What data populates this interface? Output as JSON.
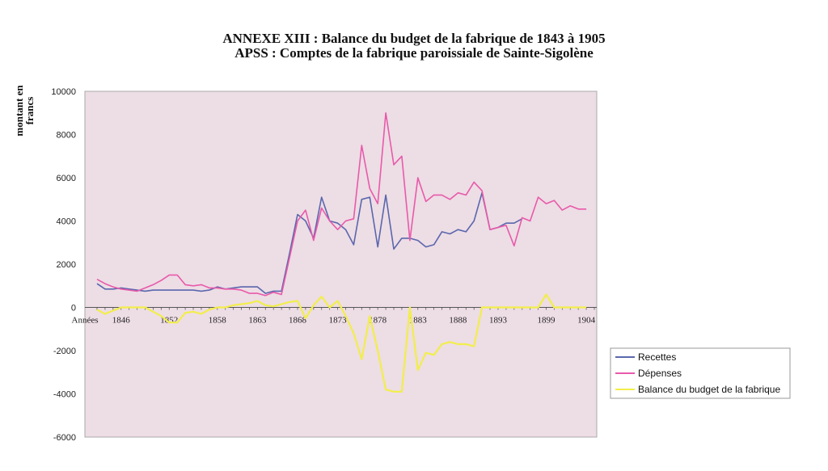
{
  "chart_data": {
    "type": "line",
    "title": "ANNEXE XIII : Balance du budget de la fabrique de 1843 à 1905",
    "subtitle": "APSS : Comptes de la fabrique paroissiale de Sainte-Sigolène",
    "ylabel_line1": "montant en",
    "ylabel_line2": "francs",
    "xlabel": "Années",
    "ylim": [
      -6000,
      10000
    ],
    "xlim": [
      1843,
      1905
    ],
    "yticks": [
      10000,
      8000,
      6000,
      4000,
      2000,
      0,
      -2000,
      -4000,
      -6000
    ],
    "xticks": [
      1846,
      1852,
      1858,
      1863,
      1868,
      1873,
      1878,
      1883,
      1888,
      1893,
      1899,
      1904
    ],
    "legend_position": "right",
    "colors": {
      "plot_background": "#eddde5",
      "recettes": "#5a67ad",
      "depenses": "#e85aaa",
      "balance": "#f2ee4a"
    },
    "series": [
      {
        "name": "Recettes",
        "color": "#5a67ad",
        "x": [
          1843,
          1844,
          1845,
          1846,
          1847,
          1848,
          1849,
          1850,
          1851,
          1852,
          1853,
          1854,
          1855,
          1856,
          1857,
          1858,
          1859,
          1860,
          1861,
          1862,
          1863,
          1864,
          1865,
          1866,
          1867,
          1868,
          1869,
          1870,
          1871,
          1872,
          1873,
          1874,
          1875,
          1876,
          1877,
          1878,
          1879,
          1880,
          1881,
          1882,
          1883,
          1884,
          1885,
          1886,
          1887,
          1888,
          1889,
          1890,
          1891,
          1892,
          1893,
          1894,
          1895,
          1896,
          1897,
          1898,
          1899,
          1900,
          1901,
          1902,
          1903,
          1904
        ],
        "values": [
          1100,
          850,
          850,
          900,
          850,
          800,
          750,
          800,
          800,
          800,
          800,
          800,
          800,
          750,
          800,
          950,
          850,
          900,
          950,
          950,
          950,
          650,
          750,
          750,
          2500,
          4300,
          4000,
          3200,
          5100,
          4000,
          3900,
          3600,
          2900,
          5000,
          5100,
          2800,
          5200,
          2700,
          3200,
          3200,
          3100,
          2800,
          2900,
          3500,
          3400,
          3600,
          3500,
          4000,
          5300,
          3600,
          3700,
          3900,
          3900,
          4100,
          null,
          null,
          null,
          null,
          null,
          null,
          null,
          null
        ]
      },
      {
        "name": "Dépenses",
        "color": "#e85aaa",
        "x": [
          1843,
          1844,
          1845,
          1846,
          1847,
          1848,
          1849,
          1850,
          1851,
          1852,
          1853,
          1854,
          1855,
          1856,
          1857,
          1858,
          1859,
          1860,
          1861,
          1862,
          1863,
          1864,
          1865,
          1866,
          1867,
          1868,
          1869,
          1870,
          1871,
          1872,
          1873,
          1874,
          1875,
          1876,
          1877,
          1878,
          1879,
          1880,
          1881,
          1882,
          1883,
          1884,
          1885,
          1886,
          1887,
          1888,
          1889,
          1890,
          1891,
          1892,
          1893,
          1894,
          1895,
          1896,
          1897,
          1898,
          1899,
          1900,
          1901,
          1902,
          1903,
          1904
        ],
        "values": [
          1300,
          1100,
          950,
          850,
          800,
          750,
          900,
          1050,
          1250,
          1500,
          1500,
          1050,
          1000,
          1050,
          900,
          900,
          850,
          850,
          800,
          650,
          650,
          550,
          700,
          600,
          2300,
          4000,
          4500,
          3100,
          4600,
          4000,
          3600,
          4000,
          4100,
          7500,
          5500,
          4800,
          9000,
          6600,
          7000,
          3100,
          6000,
          4900,
          5200,
          5200,
          5000,
          5300,
          5200,
          5800,
          5400,
          3600,
          3700,
          3800,
          2850,
          4150,
          4000,
          5100,
          4800,
          4950,
          4500,
          4700,
          4550,
          4550
        ]
      },
      {
        "name": "Balance du budget de la fabrique",
        "color": "#f2ee4a",
        "x": [
          1843,
          1844,
          1845,
          1846,
          1847,
          1848,
          1849,
          1850,
          1851,
          1852,
          1853,
          1854,
          1855,
          1856,
          1857,
          1858,
          1859,
          1860,
          1861,
          1862,
          1863,
          1864,
          1865,
          1866,
          1867,
          1868,
          1869,
          1870,
          1871,
          1872,
          1873,
          1874,
          1875,
          1876,
          1877,
          1878,
          1879,
          1880,
          1881,
          1882,
          1883,
          1884,
          1885,
          1886,
          1887,
          1888,
          1889,
          1890,
          1891,
          1892,
          1893,
          1894,
          1895,
          1896,
          1897,
          1898,
          1899,
          1900,
          1901,
          1902,
          1903,
          1904
        ],
        "values": [
          -100,
          -300,
          -150,
          0,
          0,
          0,
          0,
          -200,
          -400,
          -700,
          -700,
          -250,
          -200,
          -300,
          -100,
          0,
          0,
          100,
          150,
          200,
          300,
          100,
          50,
          150,
          250,
          300,
          -500,
          100,
          500,
          0,
          300,
          -400,
          -1200,
          -2400,
          -400,
          -2000,
          -3800,
          -3900,
          -3900,
          0,
          -2900,
          -2100,
          -2200,
          -1700,
          -1600,
          -1700,
          -1700,
          -1800,
          0,
          0,
          0,
          0,
          0,
          0,
          0,
          0,
          600,
          0,
          0,
          0,
          0,
          0
        ]
      }
    ]
  }
}
